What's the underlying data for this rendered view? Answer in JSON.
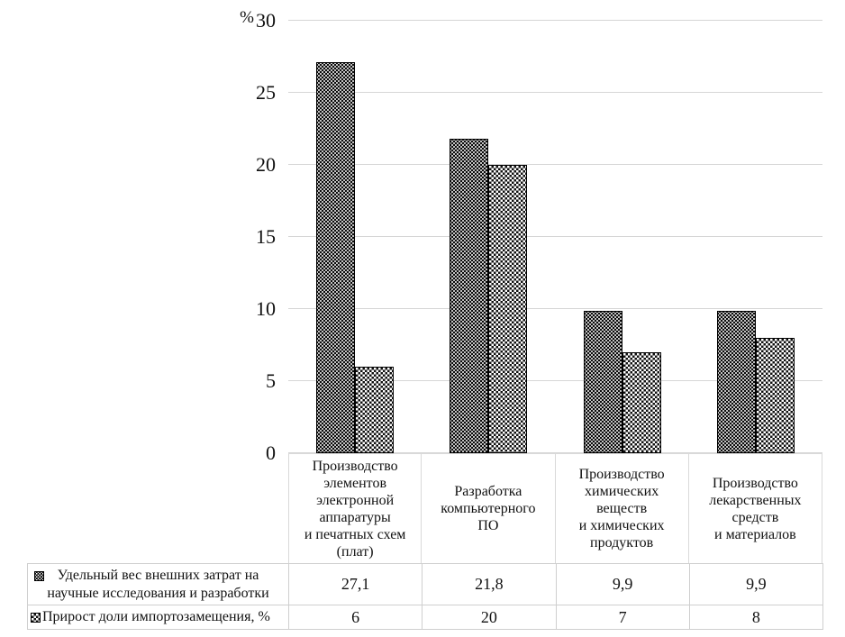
{
  "chart_data": {
    "type": "bar",
    "title": "",
    "unit_label": "%",
    "ylim": [
      0,
      30
    ],
    "yticks": [
      0,
      5,
      10,
      15,
      20,
      25,
      30
    ],
    "grid": true,
    "legend_position": "bottom-table",
    "categories": [
      "Производство элементов электронной аппаратуры и печатных схем (плат)",
      "Разработка компьютерного ПО",
      "Производство химических веществ и химических продуктов",
      "Производство лекарственных средств и материалов"
    ],
    "categories_display": [
      "Производство\nэлементов\nэлектронной\nаппаратуры\nи печатных схем\n(плат)",
      "Разработка\nкомпьютерного\nПО",
      "Производство\nхимических\nвеществ\nи химических\nпродуктов",
      "Производство\nлекарственных\nсредств\nи материалов"
    ],
    "series": [
      {
        "name": "Удельный вес внешних затрат на научные исследования и разработки",
        "name_display": "Удельный вес внешних затрат на\nнаучные исследования и разработки",
        "pattern": "dots",
        "values": [
          27.1,
          21.8,
          9.9,
          9.9
        ],
        "value_labels": [
          "27,1",
          "21,8",
          "9,9",
          "9,9"
        ]
      },
      {
        "name": "Прирост доли импортозамещения, %",
        "name_display": "Прирост доли импортозамещения, %",
        "pattern": "check",
        "values": [
          6,
          20,
          7,
          8
        ],
        "value_labels": [
          "6",
          "20",
          "7",
          "8"
        ]
      }
    ]
  }
}
